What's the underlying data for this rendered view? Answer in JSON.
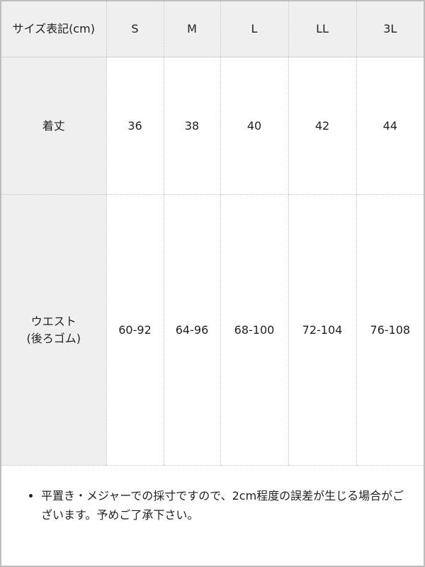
{
  "table": {
    "header": [
      "サイズ表記(cm)",
      "S",
      "M",
      "L",
      "LL",
      "3L"
    ],
    "rows": [
      {
        "label": "着丈",
        "values": [
          "36",
          "38",
          "40",
          "42",
          "44"
        ]
      },
      {
        "label": "ウエスト\n(後ろゴム)",
        "values": [
          "60-92",
          "64-96",
          "68-100",
          "72-104",
          "76-108"
        ]
      }
    ]
  },
  "note": "平置き・メジャーでの採寸ですので、2cm程度の誤差が生じる場合がございます。予めご了承下さい。",
  "colors": {
    "header_bg": "#efefef",
    "border": "#bdbdbd"
  }
}
